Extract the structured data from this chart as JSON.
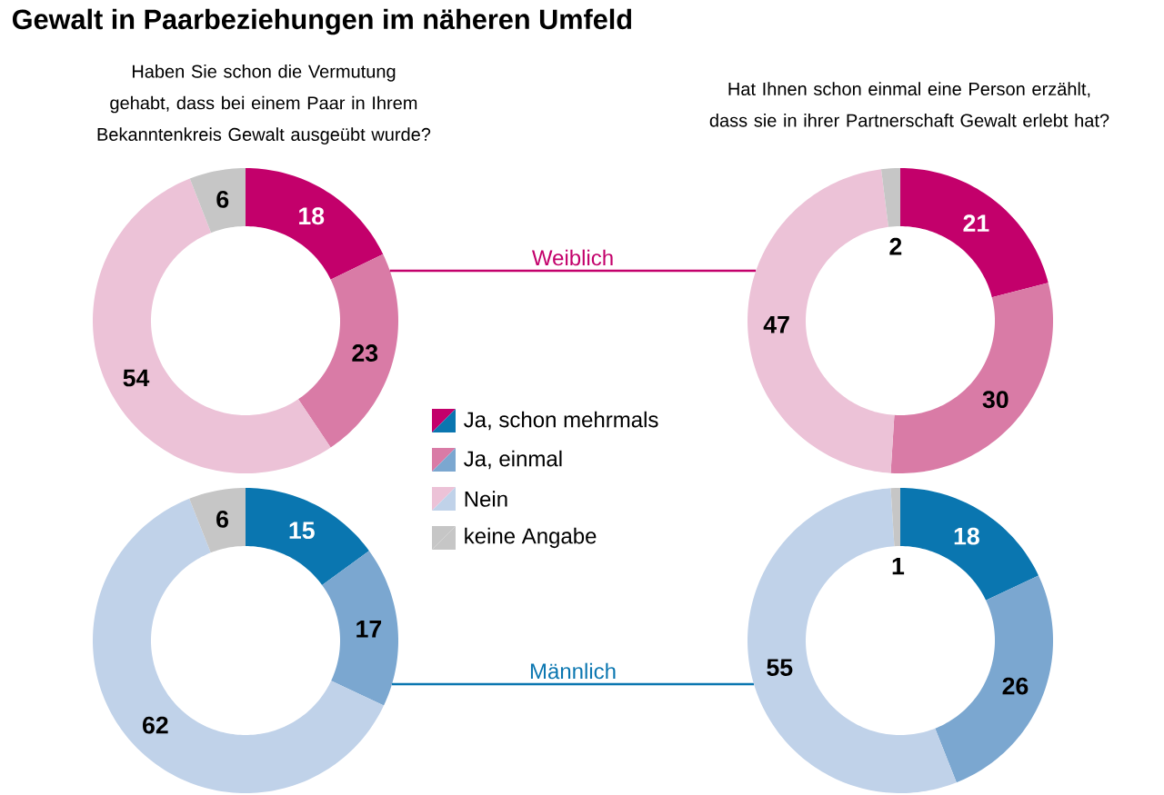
{
  "chart_data": [
    {
      "type": "donut",
      "title": "Gewalt in Paarbeziehungen im näheren Umfeld",
      "subtitle": "Haben Sie schon die Vermutung gehabt, dass bei einem Paar in Ihrem Bekanntenkreis Gewalt ausgeübt wurde?",
      "annotations": [
        "Weiblich"
      ],
      "legend": "bottom right",
      "data_labels": true,
      "categories": [
        "Ja, schon mehrmals",
        "Ja, einmal",
        "Nein",
        "keine Angabe"
      ],
      "values": [
        18,
        23,
        54,
        6
      ],
      "colors": [
        "#c3006b",
        "#d97ba6",
        "#ecc2d7",
        "#c6c6c6"
      ]
    },
    {
      "type": "donut",
      "subtitle": "Hat Ihnen schon einmal eine Person erzählt, dass sie in ihrer Partnerschaft Gewalt erlebt hat?",
      "data_labels": true,
      "categories": [
        null,
        null,
        null,
        null
      ],
      "values": [
        21,
        30,
        47,
        2
      ],
      "colors": [
        "#c3006b",
        "#d97ba6",
        "#ecc2d7",
        "#c6c6c6"
      ]
    },
    {
      "type": "donut",
      "annotations": [
        "Männlich"
      ],
      "data_labels": true,
      "categories": [
        null,
        null,
        null,
        null
      ],
      "values": [
        15,
        17,
        62,
        6
      ],
      "colors": [
        "#0a76b0",
        "#7ba7d0",
        "#c0d2e9",
        "#c6c6c6"
      ]
    },
    {
      "type": "donut",
      "data_labels": true,
      "categories": [
        null,
        null,
        null,
        null
      ],
      "values": [
        18,
        26,
        55,
        1
      ],
      "colors": [
        "#0a76b0",
        "#7ba7d0",
        "#c0d2e9",
        "#c6c6c6"
      ]
    }
  ]
}
